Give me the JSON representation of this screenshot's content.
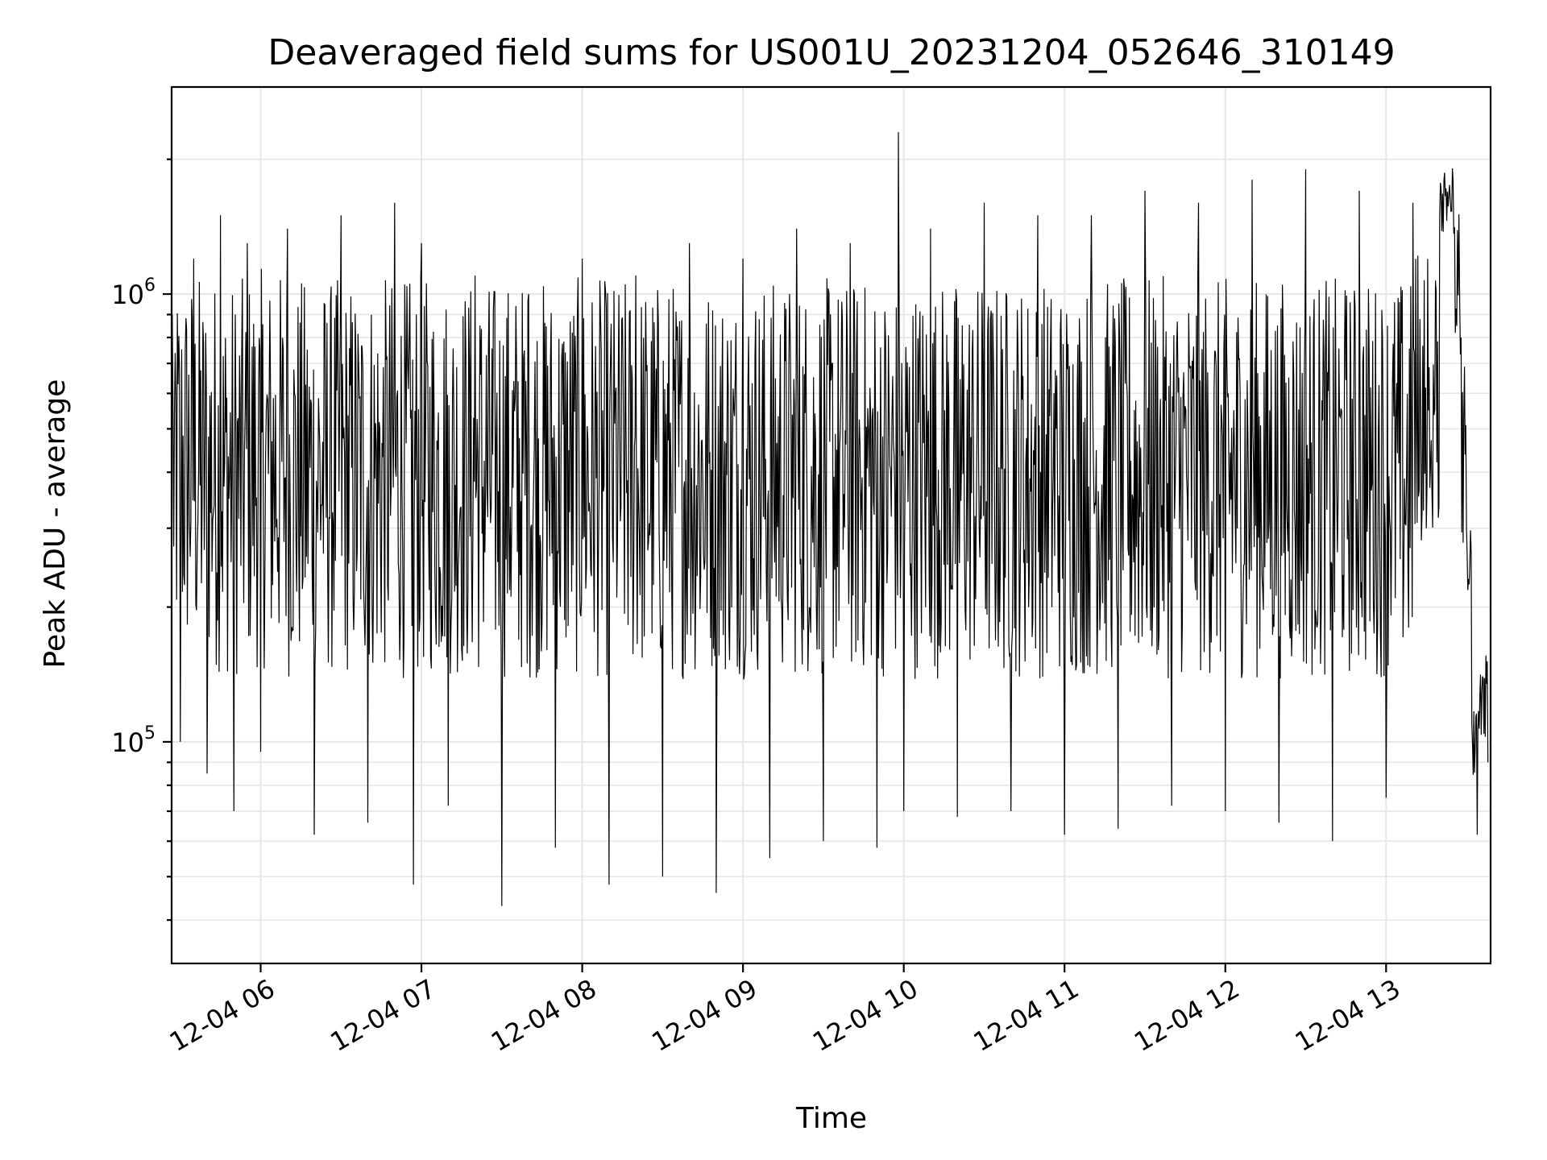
{
  "chart_data": {
    "type": "line",
    "title": "Deaveraged field sums for US001U_20231204_052646_310149",
    "xlabel": "Time",
    "ylabel": "Peak ADU - average",
    "yscale": "log",
    "ylim": [
      32000,
      2900000
    ],
    "xlim": [
      "2023-12-04 05:26:46",
      "2023-12-04 13:39:00"
    ],
    "grid": true,
    "line_color": "#000000",
    "x_ticks": [
      {
        "label": "12-04 06",
        "time": "2023-12-04 06:00:00"
      },
      {
        "label": "12-04 07",
        "time": "2023-12-04 07:00:00"
      },
      {
        "label": "12-04 08",
        "time": "2023-12-04 08:00:00"
      },
      {
        "label": "12-04 09",
        "time": "2023-12-04 09:00:00"
      },
      {
        "label": "12-04 10",
        "time": "2023-12-04 10:00:00"
      },
      {
        "label": "12-04 11",
        "time": "2023-12-04 11:00:00"
      },
      {
        "label": "12-04 12",
        "time": "2023-12-04 12:00:00"
      },
      {
        "label": "12-04 13",
        "time": "2023-12-04 13:00:00"
      }
    ],
    "y_ticks": [
      {
        "base": "10",
        "exp": "5",
        "value": 100000
      },
      {
        "base": "10",
        "exp": "6",
        "value": 1000000
      }
    ],
    "series": [
      {
        "x": [
          "2023-12-04 05:27",
          "2023-12-04 05:30",
          "2023-12-04 05:35",
          "2023-12-04 05:40",
          "2023-12-04 05:45",
          "2023-12-04 05:50",
          "2023-12-04 05:55",
          "2023-12-04 06:00",
          "2023-12-04 06:10",
          "2023-12-04 06:20",
          "2023-12-04 06:30",
          "2023-12-04 06:40",
          "2023-12-04 06:50",
          "2023-12-04 06:57",
          "2023-12-04 07:00",
          "2023-12-04 07:10",
          "2023-12-04 07:20",
          "2023-12-04 07:30",
          "2023-12-04 07:40",
          "2023-12-04 07:50",
          "2023-12-04 08:00",
          "2023-12-04 08:10",
          "2023-12-04 08:20",
          "2023-12-04 08:30",
          "2023-12-04 08:40",
          "2023-12-04 08:50",
          "2023-12-04 09:00",
          "2023-12-04 09:10",
          "2023-12-04 09:20",
          "2023-12-04 09:30",
          "2023-12-04 09:40",
          "2023-12-04 09:50",
          "2023-12-04 09:58",
          "2023-12-04 10:00",
          "2023-12-04 10:10",
          "2023-12-04 10:20",
          "2023-12-04 10:30",
          "2023-12-04 10:40",
          "2023-12-04 10:50",
          "2023-12-04 11:00",
          "2023-12-04 11:10",
          "2023-12-04 11:20",
          "2023-12-04 11:30",
          "2023-12-04 11:40",
          "2023-12-04 11:50",
          "2023-12-04 12:00",
          "2023-12-04 12:10",
          "2023-12-04 12:20",
          "2023-12-04 12:30",
          "2023-12-04 12:40",
          "2023-12-04 12:50",
          "2023-12-04 13:00",
          "2023-12-04 13:10",
          "2023-12-04 13:15",
          "2023-12-04 13:20",
          "2023-12-04 13:25",
          "2023-12-04 13:28",
          "2023-12-04 13:30",
          "2023-12-04 13:32",
          "2023-12-04 13:34",
          "2023-12-04 13:36",
          "2023-12-04 13:38"
        ],
        "y": [
          900000,
          100000,
          1200000,
          85000,
          1500000,
          70000,
          1300000,
          95000,
          1400000,
          62000,
          1500000,
          66000,
          1600000,
          48000,
          1300000,
          72000,
          1100000,
          43000,
          1000000,
          58000,
          1200000,
          48000,
          1100000,
          50000,
          1300000,
          46000,
          1200000,
          55000,
          1400000,
          60000,
          1300000,
          58000,
          2300000,
          70000,
          1400000,
          68000,
          1600000,
          70000,
          1500000,
          62000,
          1500000,
          64000,
          1700000,
          72000,
          1600000,
          70000,
          1800000,
          66000,
          1900000,
          60000,
          1700000,
          75000,
          1600000,
          300000,
          1500000,
          1800000,
          800000,
          300000,
          110000,
          62000,
          140000,
          90000
        ]
      }
    ]
  }
}
